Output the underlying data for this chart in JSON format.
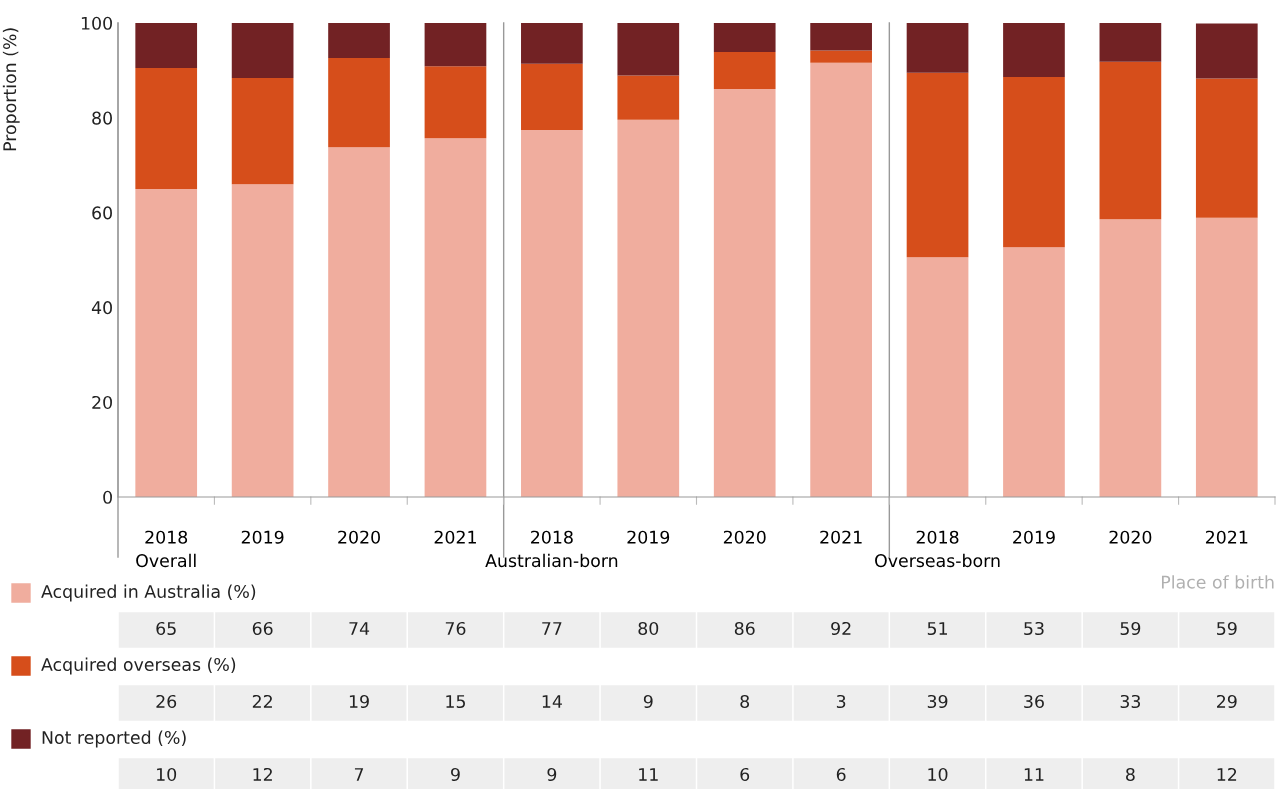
{
  "chart_data": {
    "type": "bar",
    "stacked": true,
    "categories": [
      "2018\nOverall",
      "2019",
      "2020",
      "2021",
      "2018\nAustralian-born",
      "2019",
      "2020",
      "2021",
      "2018\nOverseas-born",
      "2019",
      "2020",
      "2021"
    ],
    "series": [
      {
        "name": "Acquired in Australia (%)",
        "color": "#f0ad9e",
        "values": [
          65.0,
          66.0,
          73.8,
          75.7,
          77.4,
          79.6,
          86.1,
          91.6,
          50.6,
          52.7,
          58.6,
          58.9
        ],
        "value_labels": [
          "65",
          "66",
          "74",
          "76",
          "77",
          "80",
          "86",
          "92",
          "51",
          "53",
          "59",
          "59"
        ]
      },
      {
        "name": "Acquired overseas (%)",
        "color": "#d64e1b",
        "values": [
          25.5,
          22.4,
          18.8,
          15.2,
          14.0,
          9.3,
          7.8,
          2.6,
          38.9,
          35.9,
          33.2,
          29.4
        ],
        "value_labels": [
          "26",
          "22",
          "19",
          "15",
          "14",
          "9",
          "8",
          "3",
          "39",
          "36",
          "33",
          "29"
        ]
      },
      {
        "name": "Not reported (%)",
        "color": "#722224",
        "values": [
          9.5,
          11.6,
          7.4,
          9.1,
          8.6,
          11.1,
          6.1,
          5.8,
          10.5,
          11.4,
          8.2,
          11.6
        ],
        "value_labels": [
          "10",
          "12",
          "7",
          "9",
          "9",
          "11",
          "6",
          "6",
          "10",
          "11",
          "8",
          "12"
        ]
      }
    ],
    "ylabel": "Proportion (%)",
    "xlabel": "Place of birth",
    "ylim": [
      0,
      100
    ],
    "yticks": [
      0,
      20,
      40,
      60,
      80,
      100
    ],
    "grid": false,
    "legend": "bottom"
  }
}
